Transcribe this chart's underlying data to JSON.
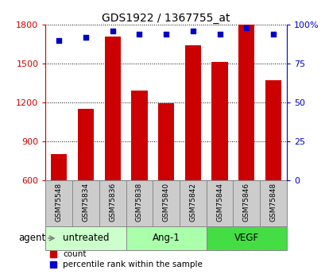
{
  "title": "GDS1922 / 1367755_at",
  "categories": [
    "GSM75548",
    "GSM75834",
    "GSM75836",
    "GSM75838",
    "GSM75840",
    "GSM75842",
    "GSM75844",
    "GSM75846",
    "GSM75848"
  ],
  "bar_values": [
    800,
    1150,
    1710,
    1290,
    1195,
    1640,
    1510,
    1800,
    1370
  ],
  "dot_values": [
    90,
    92,
    96,
    94,
    94,
    96,
    94,
    98,
    94
  ],
  "bar_color": "#cc0000",
  "dot_color": "#0000cc",
  "ylim_left": [
    600,
    1800
  ],
  "ylim_right": [
    0,
    100
  ],
  "yticks_left": [
    600,
    900,
    1200,
    1500,
    1800
  ],
  "yticks_right": [
    0,
    25,
    50,
    75,
    100
  ],
  "ytick_labels_right": [
    "0",
    "25",
    "50",
    "75",
    "100%"
  ],
  "groups": [
    {
      "label": "untreated",
      "start": 0,
      "end": 3,
      "color": "#ccffcc"
    },
    {
      "label": "Ang-1",
      "start": 3,
      "end": 6,
      "color": "#aaffaa"
    },
    {
      "label": "VEGF",
      "start": 6,
      "end": 9,
      "color": "#44dd44"
    }
  ],
  "agent_label": "agent",
  "legend_count_label": "count",
  "legend_pct_label": "percentile rank within the sample",
  "background_color": "#ffffff",
  "sample_box_color": "#cccccc",
  "sample_box_edge": "#888888"
}
